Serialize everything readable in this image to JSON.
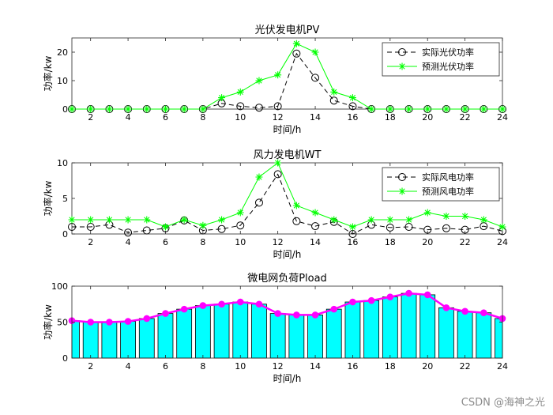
{
  "watermark": "CSDN @海神之光",
  "chart_data": [
    {
      "type": "line",
      "title": "光伏发电机PV",
      "xlabel": "时间/h",
      "ylabel": "功率/kw",
      "xlim": [
        1,
        24
      ],
      "ylim": [
        0,
        25
      ],
      "xticks": [
        2,
        4,
        6,
        8,
        10,
        12,
        14,
        16,
        18,
        20,
        22,
        24
      ],
      "yticks": [
        0,
        10,
        20
      ],
      "grid": false,
      "legend_position": "top-right",
      "x": [
        1,
        2,
        3,
        4,
        5,
        6,
        7,
        8,
        9,
        10,
        11,
        12,
        13,
        14,
        15,
        16,
        17,
        18,
        19,
        20,
        21,
        22,
        23,
        24
      ],
      "series": [
        {
          "name": "实际光伏功率",
          "color": "#000000",
          "style": "dash-circle",
          "values": [
            0,
            0,
            0,
            0,
            0,
            0,
            0,
            0,
            2,
            1,
            0.5,
            1,
            19.5,
            11,
            3,
            1,
            0,
            0,
            0,
            0,
            0,
            0,
            0,
            0
          ]
        },
        {
          "name": "预测光伏功率",
          "color": "#00ff00",
          "style": "solid-star",
          "values": [
            0,
            0,
            0,
            0,
            0,
            0,
            0,
            0,
            4,
            6,
            10,
            12,
            23,
            20,
            6,
            4,
            0,
            0,
            0,
            0,
            0,
            0,
            0,
            0
          ]
        }
      ]
    },
    {
      "type": "line",
      "title": "风力发电机WT",
      "xlabel": "时间/h",
      "ylabel": "功率/kw",
      "xlim": [
        1,
        24
      ],
      "ylim": [
        0,
        10
      ],
      "xticks": [
        2,
        4,
        6,
        8,
        10,
        12,
        14,
        16,
        18,
        20,
        22,
        24
      ],
      "yticks": [
        0,
        5,
        10
      ],
      "grid": false,
      "legend_position": "top-right",
      "x": [
        1,
        2,
        3,
        4,
        5,
        6,
        7,
        8,
        9,
        10,
        11,
        12,
        13,
        14,
        15,
        16,
        17,
        18,
        19,
        20,
        21,
        22,
        23,
        24
      ],
      "series": [
        {
          "name": "实际风电功率",
          "color": "#000000",
          "style": "dash-circle",
          "values": [
            1,
            1,
            1.3,
            0.2,
            0.5,
            0.8,
            1.9,
            0.5,
            0.7,
            1.2,
            4.4,
            8.4,
            1.8,
            1.1,
            1.7,
            0,
            1.3,
            0.9,
            1,
            0.6,
            0.8,
            0.6,
            1.1,
            0.4
          ]
        },
        {
          "name": "预测风电功率",
          "color": "#00ff00",
          "style": "solid-star",
          "values": [
            2,
            2,
            2,
            2,
            2,
            1,
            2,
            1.2,
            2,
            3,
            8,
            10,
            4,
            3,
            2,
            1,
            2,
            2,
            2,
            3,
            2.5,
            2.5,
            2,
            1
          ]
        }
      ]
    },
    {
      "type": "bar",
      "title": "微电网负荷Pload",
      "xlabel": "时间/h",
      "ylabel": "功率/kw",
      "xlim": [
        1,
        24
      ],
      "ylim": [
        0,
        100
      ],
      "xticks": [
        2,
        4,
        6,
        8,
        10,
        12,
        14,
        16,
        18,
        20,
        22,
        24
      ],
      "yticks": [
        0,
        50,
        100
      ],
      "grid": false,
      "x": [
        1,
        2,
        3,
        4,
        5,
        6,
        7,
        8,
        9,
        10,
        11,
        12,
        13,
        14,
        15,
        16,
        17,
        18,
        19,
        20,
        21,
        22,
        23,
        24
      ],
      "bar_color": "#00ffff",
      "line_color": "#ff00ff",
      "values": [
        52,
        50,
        50,
        51,
        55,
        62,
        68,
        73,
        75,
        78,
        75,
        62,
        60,
        60,
        68,
        78,
        80,
        85,
        90,
        88,
        70,
        65,
        63,
        55
      ]
    }
  ]
}
